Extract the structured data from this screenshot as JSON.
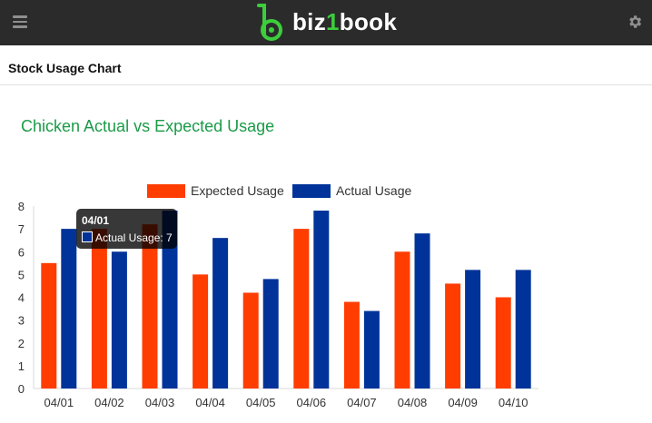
{
  "header": {
    "brand_prefix": "biz",
    "brand_digit": "1",
    "brand_suffix": "book",
    "menu_icon": "hamburger-menu-icon",
    "settings_icon": "gear-icon"
  },
  "page": {
    "title": "Stock Usage Chart"
  },
  "chart_heading": "Chicken Actual vs Expected Usage",
  "colors": {
    "expected": "#ff3d00",
    "actual": "#003399",
    "heading": "#1a9b47",
    "topbar": "#2b2b2b",
    "brand_green": "#3ccd3c"
  },
  "tooltip": {
    "title": "04/01",
    "label": "Actual Usage: 7"
  },
  "chart_data": {
    "type": "bar",
    "categories": [
      "04/01",
      "04/02",
      "04/03",
      "04/04",
      "04/05",
      "04/06",
      "04/07",
      "04/08",
      "04/09",
      "04/10"
    ],
    "series": [
      {
        "name": "Expected Usage",
        "values": [
          5.5,
          7,
          7.2,
          5,
          4.2,
          7,
          3.8,
          6,
          4.6,
          4
        ]
      },
      {
        "name": "Actual Usage",
        "values": [
          7,
          6,
          7.8,
          6.6,
          4.8,
          7.8,
          3.4,
          6.8,
          5.2,
          5.2
        ]
      }
    ],
    "title": "",
    "xlabel": "",
    "ylabel": "",
    "ylim": [
      0,
      8
    ],
    "yticks": [
      0,
      1,
      2,
      3,
      4,
      5,
      6,
      7,
      8
    ],
    "grid": false,
    "legend": "top"
  }
}
